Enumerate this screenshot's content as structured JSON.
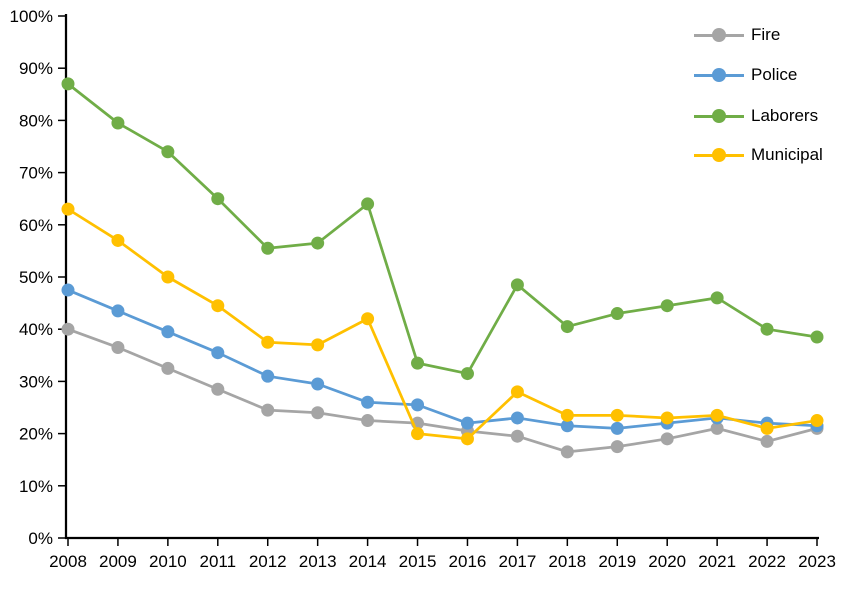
{
  "chart_data": {
    "type": "line",
    "title": "",
    "xlabel": "",
    "ylabel": "",
    "categories": [
      "2008",
      "2009",
      "2010",
      "2011",
      "2012",
      "2013",
      "2014",
      "2015",
      "2016",
      "2017",
      "2018",
      "2019",
      "2020",
      "2021",
      "2022",
      "2023"
    ],
    "series": [
      {
        "name": "Fire",
        "color": "#A5A5A5",
        "values": [
          40,
          36.5,
          32.5,
          28.5,
          24.5,
          24,
          22.5,
          22,
          20.5,
          19.5,
          16.5,
          17.5,
          19,
          21,
          18.5,
          21
        ]
      },
      {
        "name": "Police",
        "color": "#5B9BD5",
        "values": [
          47.5,
          43.5,
          39.5,
          35.5,
          31,
          29.5,
          26,
          25.5,
          22,
          23,
          21.5,
          21,
          22,
          23,
          22,
          21.5
        ]
      },
      {
        "name": "Laborers",
        "color": "#70AD47",
        "values": [
          87,
          79.5,
          74,
          65,
          55.5,
          56.5,
          64,
          33.5,
          31.5,
          48.5,
          40.5,
          43,
          44.5,
          46,
          40,
          38.5
        ]
      },
      {
        "name": "Municipal",
        "color": "#FFC000",
        "values": [
          63,
          57,
          50,
          44.5,
          37.5,
          37,
          42,
          20,
          19,
          28,
          23.5,
          23.5,
          23,
          23.5,
          21,
          22.5
        ]
      }
    ],
    "ylim": [
      0,
      100
    ],
    "y_tick_labels": [
      "0%",
      "10%",
      "20%",
      "30%",
      "40%",
      "50%",
      "60%",
      "70%",
      "80%",
      "90%",
      "100%"
    ],
    "grid": false,
    "legend_position": "top-right",
    "axis_color": "#000000",
    "text_color": "#000000",
    "background": "#FFFFFF"
  }
}
